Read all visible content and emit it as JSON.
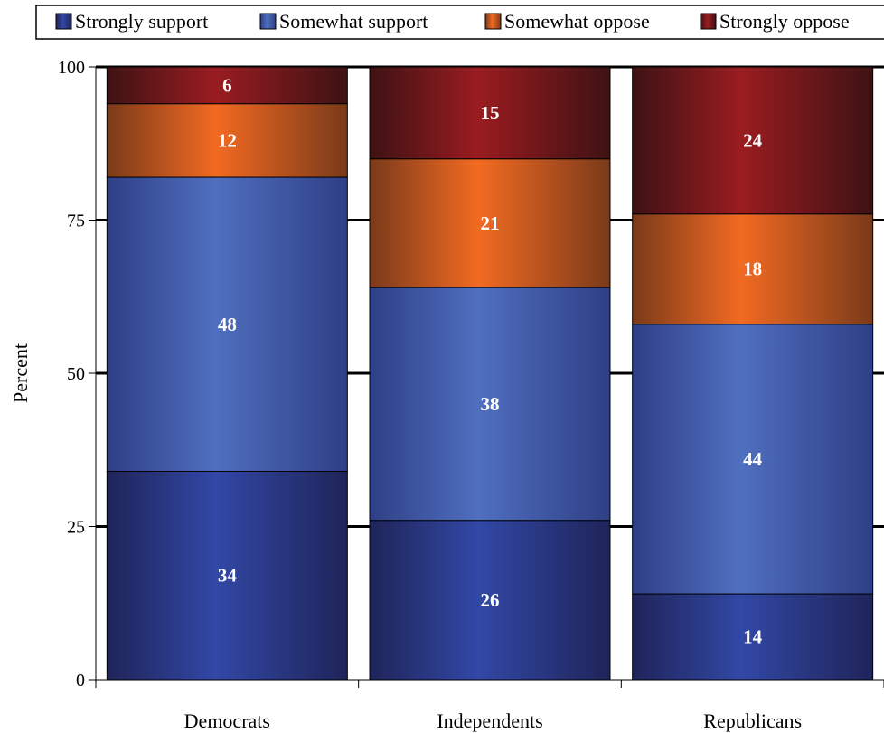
{
  "chart_data": {
    "type": "bar",
    "stacked": true,
    "title": "",
    "xlabel": "",
    "ylabel": "Percent",
    "ylim": [
      0,
      100
    ],
    "yticks": [
      0,
      25,
      50,
      75,
      100
    ],
    "grid": true,
    "legend_position": "top",
    "categories": [
      "Democrats",
      "Independents",
      "Republicans"
    ],
    "series": [
      {
        "name": "Strongly support",
        "color": "#2a3c8f",
        "values": [
          34,
          26,
          14
        ]
      },
      {
        "name": "Somewhat support",
        "color": "#4a6ab8",
        "values": [
          48,
          38,
          44
        ]
      },
      {
        "name": "Somewhat oppose",
        "color": "#f06a22",
        "values": [
          12,
          21,
          18
        ]
      },
      {
        "name": "Strongly oppose",
        "color": "#8e1a1e",
        "values": [
          6,
          15,
          24
        ]
      }
    ]
  }
}
